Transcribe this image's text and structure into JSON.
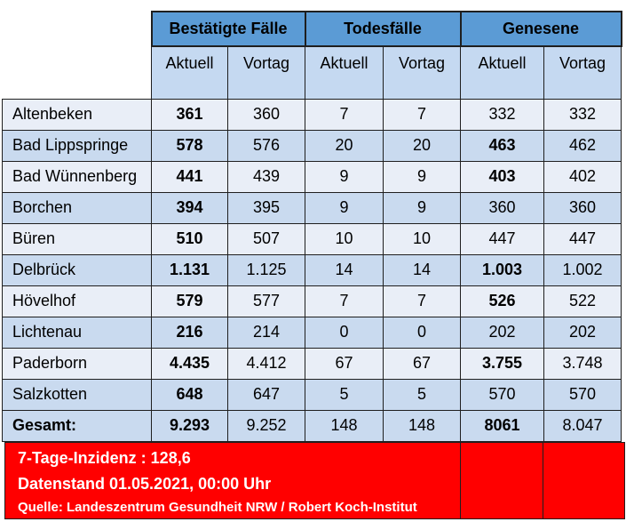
{
  "headers": {
    "groups": [
      "Bestätigte Fälle",
      "Todesfälle",
      "Genesene"
    ],
    "sub": [
      "Aktuell",
      "Vortag",
      "Aktuell",
      "Vortag",
      "Aktuell",
      "Vortag"
    ]
  },
  "rows": [
    {
      "name": "Altenbeken",
      "values": [
        "361",
        "360",
        "7",
        "7",
        "332",
        "332"
      ],
      "bold": [
        0
      ]
    },
    {
      "name": "Bad Lippspringe",
      "values": [
        "578",
        "576",
        "20",
        "20",
        "463",
        "462"
      ],
      "bold": [
        0,
        4
      ]
    },
    {
      "name": "Bad Wünnenberg",
      "values": [
        "441",
        "439",
        "9",
        "9",
        "403",
        "402"
      ],
      "bold": [
        0,
        4
      ]
    },
    {
      "name": "Borchen",
      "values": [
        "394",
        "395",
        "9",
        "9",
        "360",
        "360"
      ],
      "bold": [
        0
      ]
    },
    {
      "name": "Büren",
      "values": [
        "510",
        "507",
        "10",
        "10",
        "447",
        "447"
      ],
      "bold": [
        0
      ]
    },
    {
      "name": "Delbrück",
      "values": [
        "1.131",
        "1.125",
        "14",
        "14",
        "1.003",
        "1.002"
      ],
      "bold": [
        0,
        4
      ]
    },
    {
      "name": "Hövelhof",
      "values": [
        "579",
        "577",
        "7",
        "7",
        "526",
        "522"
      ],
      "bold": [
        0,
        4
      ]
    },
    {
      "name": "Lichtenau",
      "values": [
        "216",
        "214",
        "0",
        "0",
        "202",
        "202"
      ],
      "bold": [
        0
      ]
    },
    {
      "name": "Paderborn",
      "values": [
        "4.435",
        "4.412",
        "67",
        "67",
        "3.755",
        "3.748"
      ],
      "bold": [
        0,
        4
      ]
    },
    {
      "name": "Salzkotten",
      "values": [
        "648",
        "647",
        "5",
        "5",
        "570",
        "570"
      ],
      "bold": [
        0
      ]
    }
  ],
  "total": {
    "name": "Gesamt:",
    "values": [
      "9.293",
      "9.252",
      "148",
      "148",
      "8061",
      "8.047"
    ],
    "bold": [
      0,
      4
    ]
  },
  "footer": {
    "incidence": "7-Tage-Inzidenz : 128,6",
    "datestand": "Datenstand 01.05.2021, 00:00 Uhr",
    "source": "Quelle: Landeszentrum Gesundheit NRW / Robert Koch-Institut"
  },
  "colors": {
    "header_group": "#5b9bd5",
    "header_sub": "#c5d9f1",
    "row_light": "#e9eef7",
    "row_dark": "#c9daef",
    "footer_bg": "#ff0000",
    "footer_text": "#ffffff"
  }
}
